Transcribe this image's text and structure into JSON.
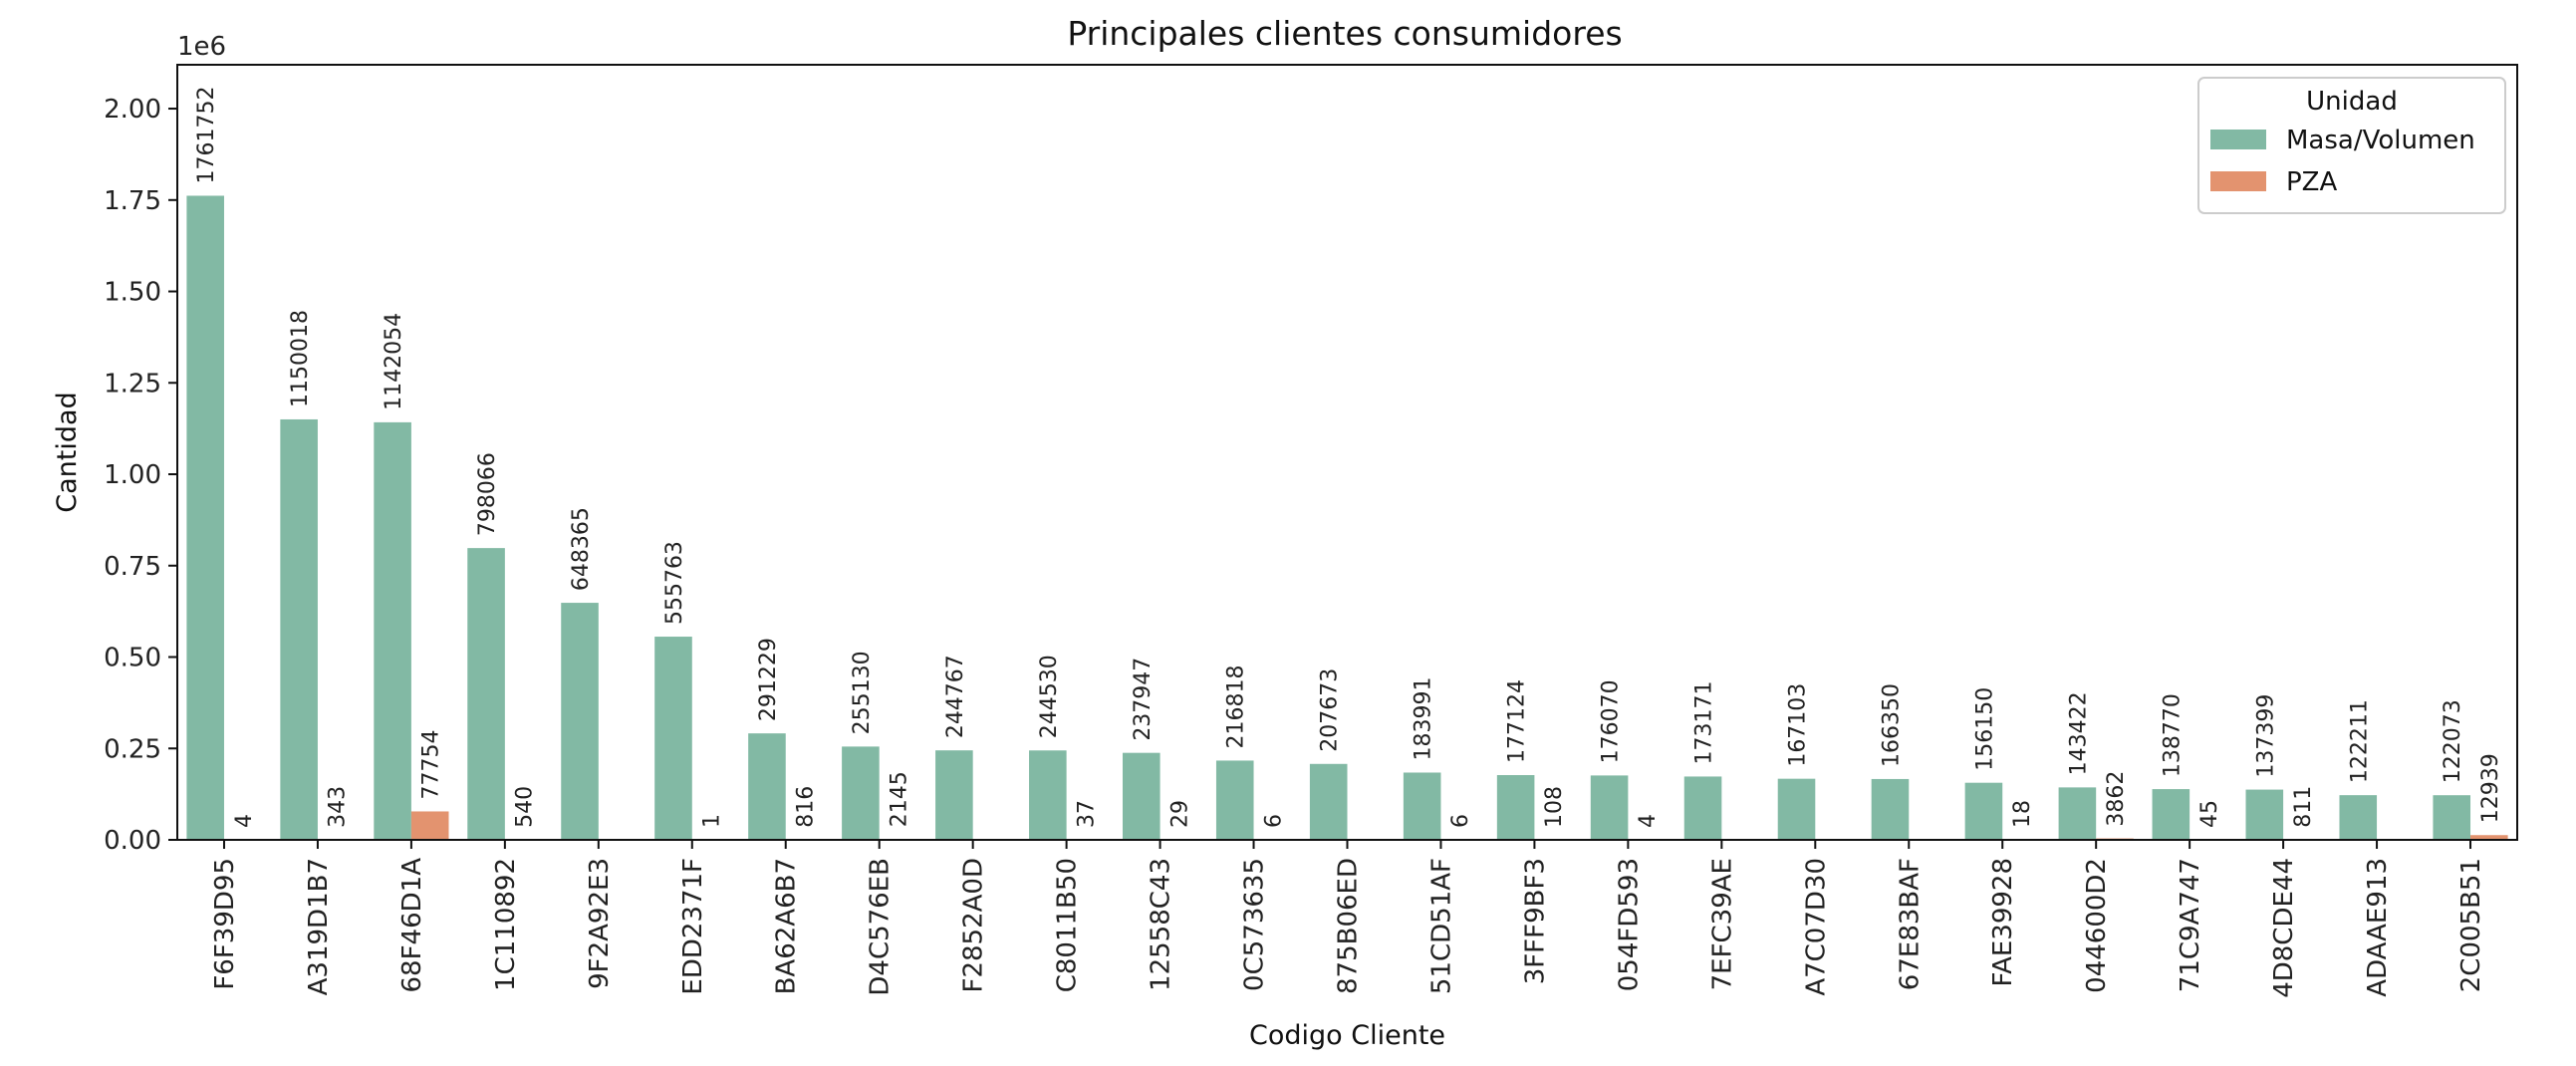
{
  "chart_data": {
    "type": "bar",
    "title": "Principales clientes consumidores",
    "xlabel": "Codigo Cliente",
    "ylabel": "Cantidad",
    "y_offset_text": "1e6",
    "ylim": [
      0,
      2120000
    ],
    "yticks": [
      0,
      250000,
      500000,
      750000,
      1000000,
      1250000,
      1500000,
      1750000,
      2000000
    ],
    "ytick_labels": [
      "0.00",
      "0.25",
      "0.50",
      "0.75",
      "1.00",
      "1.25",
      "1.50",
      "1.75",
      "2.00"
    ],
    "grid": false,
    "legend": {
      "title": "Unidad",
      "placement": "top-right"
    },
    "categories": [
      "F6F39D95",
      "A319D1B7",
      "68F46D1A",
      "1C110892",
      "9F2A92E3",
      "EDD2371F",
      "BA62A6B7",
      "D4C576EB",
      "F2852A0D",
      "C8011B50",
      "12558C43",
      "0C573635",
      "875B06ED",
      "51CD51AF",
      "3FFF9BF3",
      "054FD593",
      "7EFC39AE",
      "A7C07D30",
      "67E83BAF",
      "FAE39928",
      "044600D2",
      "71C9A747",
      "4D8CDE44",
      "ADAAE913",
      "2C005B51"
    ],
    "series": [
      {
        "name": "Masa/Volumen",
        "color": "#82b9a4",
        "values": [
          1761752,
          1150018,
          1142054,
          798066,
          648365,
          555763,
          291229,
          255130,
          244767,
          244530,
          237947,
          216818,
          207673,
          183991,
          177124,
          176070,
          173171,
          167103,
          166350,
          156150,
          143422,
          138770,
          137399,
          122211,
          122073
        ],
        "labels": [
          "1761752",
          "1150018",
          "1142054",
          "798066",
          "648365",
          "555763",
          "291229",
          "255130",
          "244767",
          "244530",
          "237947",
          "216818",
          "207673",
          "183991",
          "177124",
          "176070",
          "173171",
          "167103",
          "166350",
          "156150",
          "143422",
          "138770",
          "137399",
          "122211",
          "122073"
        ]
      },
      {
        "name": "PZA",
        "color": "#e3936f",
        "values": [
          4,
          343,
          77754,
          540,
          null,
          1,
          816,
          2145,
          null,
          37,
          29,
          6,
          null,
          6,
          108,
          4,
          null,
          null,
          null,
          18,
          3862,
          45,
          811,
          null,
          12939
        ],
        "labels": [
          "4",
          "343",
          "77754",
          "540",
          "",
          "1",
          "816",
          "2145",
          "",
          "37",
          "29",
          "6",
          "",
          "6",
          "108",
          "4",
          "",
          "",
          "",
          "18",
          "3862",
          "45",
          "811",
          "",
          "12939"
        ]
      }
    ]
  }
}
